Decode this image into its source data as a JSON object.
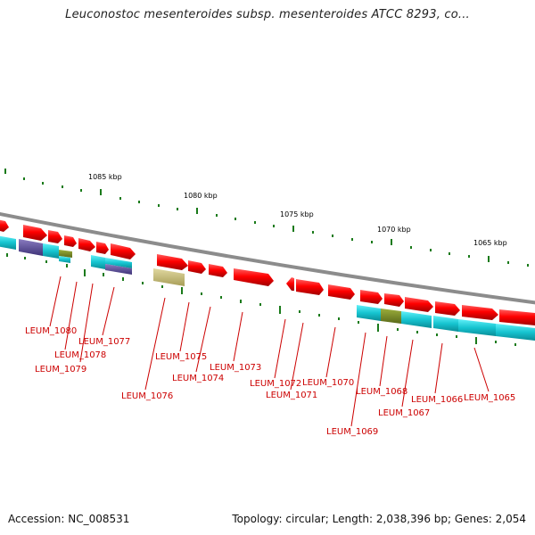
{
  "title": "Leuconostoc mesenteroides subsp. mesenteroides ATCC 8293, co...",
  "footer": {
    "accession": "Accession: NC_008531",
    "summary": "Topology: circular; Length: 2,038,396 bp; Genes: 2,054"
  },
  "scale_labels": [
    "1085 kbp",
    "1080 kbp",
    "1075 kbp",
    "1070 kbp",
    "1065 kbp"
  ],
  "gene_labels": [
    "LEUM_1080",
    "LEUM_1078",
    "LEUM_1079",
    "LEUM_1077",
    "LEUM_1076",
    "LEUM_1075",
    "LEUM_1074",
    "LEUM_1073",
    "LEUM_1072",
    "LEUM_1071",
    "LEUM_1070",
    "LEUM_1069",
    "LEUM_1068",
    "LEUM_1067",
    "LEUM_1066",
    "LEUM_1065"
  ],
  "colors": {
    "forward_gene": "#ee0000",
    "backbone": "#8c8c8c",
    "label_red": "#cc0000",
    "tick_green": "#1a7a1a",
    "cog_cyan": "#18c8d4",
    "cog_purple": "#5a4a96",
    "cog_olive": "#7a8c2a",
    "cog_khaki": "#c8bf7a"
  }
}
